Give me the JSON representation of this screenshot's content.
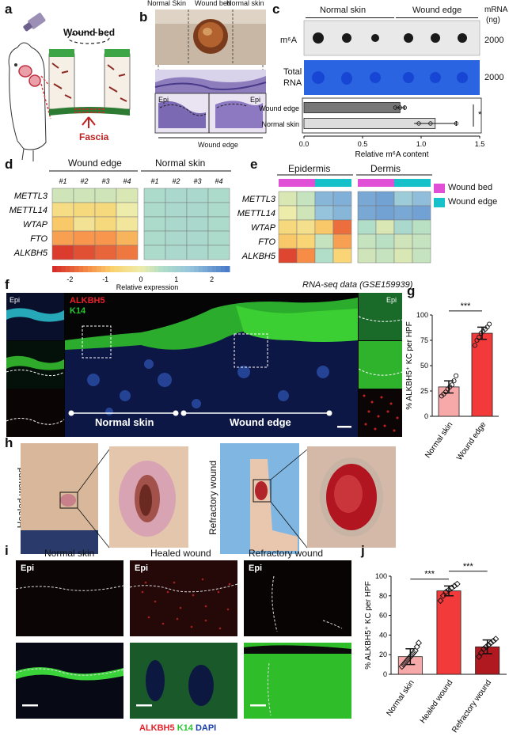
{
  "panels": {
    "a": "a",
    "b": "b",
    "c": "c",
    "d": "d",
    "e": "e",
    "f": "f",
    "g": "g",
    "h": "h",
    "i": "i",
    "j": "j"
  },
  "panel_a": {
    "wound_bed": "Wound bed",
    "fascia": "Fascia"
  },
  "panel_b": {
    "normal_skin_left": "Normal Skin",
    "wound_bed": "Wound bed",
    "normal_skin_right": "Normal skin",
    "epi_left": "Epi",
    "epi_right": "Epi",
    "wound_edge": "Wound edge"
  },
  "panel_c": {
    "normal_skin": "Normal skin",
    "wound_edge": "Wound edge",
    "mrna_header": "mRNA",
    "mrna_unit": "(ng)",
    "m6a_label": "m⁶A",
    "total_rna_label": "Total RNA",
    "amount1": "2000",
    "amount2": "2000",
    "bar_wound_edge": "Wound edge",
    "bar_normal_skin": "Normal skin",
    "significance": "*",
    "xlabel": "Relative m⁶A content",
    "ticks": [
      "0.0",
      "0.5",
      "1.0",
      "1.5"
    ]
  },
  "panel_d": {
    "group1": "Wound edge",
    "group2": "Normal skin",
    "columns": [
      "#1",
      "#2",
      "#3",
      "#4",
      "#1",
      "#2",
      "#3",
      "#4"
    ],
    "genes": [
      "METTL3",
      "METTL14",
      "WTAP",
      "FTO",
      "ALKBH5"
    ],
    "scale_ticks": [
      "-2",
      "-1",
      "0",
      "1",
      "2"
    ],
    "scale_label": "Relative expression"
  },
  "panel_e": {
    "group1": "Epidermis",
    "group2": "Dermis",
    "genes": [
      "METTL3",
      "METTL14",
      "WTAP",
      "FTO",
      "ALKBH5"
    ],
    "legend": [
      {
        "label": "Wound bed",
        "color": "#e04fd6"
      },
      {
        "label": "Wound edge",
        "color": "#17c1c9"
      }
    ],
    "source": "RNA-seq data (GSE159939)"
  },
  "panel_f": {
    "epi_left": "Epi",
    "epi_right": "Epi",
    "stain1": "ALKBH5",
    "stain2": "K14",
    "normal_skin": "Normal skin",
    "wound_edge": "Wound edge"
  },
  "panel_h": {
    "healed": "Healed wound",
    "refractory": "Refractory wound"
  },
  "panel_i": {
    "titles": [
      "Normal skin",
      "Healed wound",
      "Refractory wound"
    ],
    "epi": "Epi",
    "stain_alkbh5": "ALKBH5",
    "stain_k14": "K14",
    "stain_dapi": "DAPI"
  },
  "colors": {
    "alkbh5": "#e8202a",
    "k14": "#27c631",
    "dapi": "#1a3fa8",
    "bar_red": "#f23a3a",
    "bar_pink": "#f7a9a9",
    "bar_dark": "#b0191f"
  },
  "chart_data": [
    {
      "type": "bar",
      "id": "c",
      "categories": [
        "Wound edge",
        "Normal skin"
      ],
      "values": [
        0.82,
        1.12
      ],
      "errors": [
        0.04,
        0.18
      ],
      "points": [
        [
          0.78,
          0.82,
          0.86
        ],
        [
          0.98,
          1.08,
          1.3
        ]
      ],
      "xlabel": "Relative m⁶A content",
      "xlim": [
        0,
        1.5
      ],
      "significance": "*"
    },
    {
      "type": "heatmap",
      "id": "d",
      "rows": [
        "METTL3",
        "METTL14",
        "WTAP",
        "FTO",
        "ALKBH5"
      ],
      "columns": [
        "#1",
        "#2",
        "#3",
        "#4",
        "#1",
        "#2",
        "#3",
        "#4"
      ],
      "values": [
        [
          0.3,
          0.3,
          0.3,
          0.2,
          0.7,
          0.8,
          0.8,
          0.7
        ],
        [
          -0.5,
          -0.6,
          -0.6,
          0.0,
          0.7,
          0.8,
          0.8,
          0.7
        ],
        [
          -0.9,
          -0.3,
          -0.6,
          -0.2,
          0.7,
          0.8,
          0.8,
          0.7
        ],
        [
          -1.3,
          -1.4,
          -1.4,
          -1.1,
          0.7,
          0.8,
          0.8,
          0.7
        ],
        [
          -2.3,
          -2.1,
          -1.9,
          -1.7,
          0.7,
          0.8,
          0.8,
          0.7
        ]
      ],
      "colorbar": {
        "min": -2.5,
        "max": 2.5,
        "ticks": [
          -2,
          -1,
          0,
          1,
          2
        ],
        "label": "Relative expression"
      }
    },
    {
      "type": "heatmap",
      "id": "e",
      "groups": [
        "Epidermis",
        "Dermis"
      ],
      "rows": [
        "METTL3",
        "METTL14",
        "WTAP",
        "FTO",
        "ALKBH5"
      ],
      "columns": [
        "WB",
        "WB",
        "WE",
        "WE",
        "WB",
        "WB",
        "WE",
        "WE"
      ],
      "values": [
        [
          0.2,
          0.4,
          1.6,
          1.7,
          1.8,
          1.9,
          1.2,
          1.5
        ],
        [
          0.0,
          0.3,
          1.4,
          1.6,
          1.8,
          1.9,
          1.8,
          1.9
        ],
        [
          -0.6,
          -0.4,
          -0.9,
          -1.8,
          0.6,
          0.2,
          0.8,
          0.5
        ],
        [
          -0.9,
          -0.7,
          0.4,
          -1.3,
          0.4,
          0.5,
          0.3,
          0.4
        ],
        [
          -2.2,
          -1.5,
          0.6,
          -0.7,
          0.3,
          0.4,
          0.2,
          0.4
        ]
      ]
    },
    {
      "type": "bar",
      "id": "g",
      "categories": [
        "Normal skin",
        "Wound edge"
      ],
      "values": [
        29,
        82
      ],
      "errors": [
        6,
        6
      ],
      "points": [
        [
          20,
          22,
          24,
          27,
          29,
          31,
          35,
          40
        ],
        [
          70,
          75,
          78,
          82,
          84,
          86,
          88,
          91
        ]
      ],
      "ylabel": "% ALKBH5⁺ KC per HPF",
      "ylim": [
        0,
        100
      ],
      "yticks": [
        0,
        25,
        50,
        75,
        100
      ],
      "significance": [
        "***"
      ]
    },
    {
      "type": "bar",
      "id": "j",
      "categories": [
        "Normal skin",
        "Healed wound",
        "Refractory wound"
      ],
      "values": [
        18,
        85,
        28
      ],
      "errors": [
        8,
        5,
        7
      ],
      "points": [
        [
          8,
          10,
          12,
          14,
          16,
          18,
          20,
          22,
          24,
          28,
          32
        ],
        [
          75,
          80,
          84,
          86,
          88,
          90,
          92
        ],
        [
          18,
          22,
          26,
          28,
          30,
          32,
          34,
          36
        ]
      ],
      "ylabel": "% ALKBH5⁺ KC per HPF",
      "ylim": [
        0,
        100
      ],
      "yticks": [
        0,
        20,
        40,
        60,
        80,
        100
      ],
      "significance": [
        "***",
        "***"
      ]
    }
  ]
}
